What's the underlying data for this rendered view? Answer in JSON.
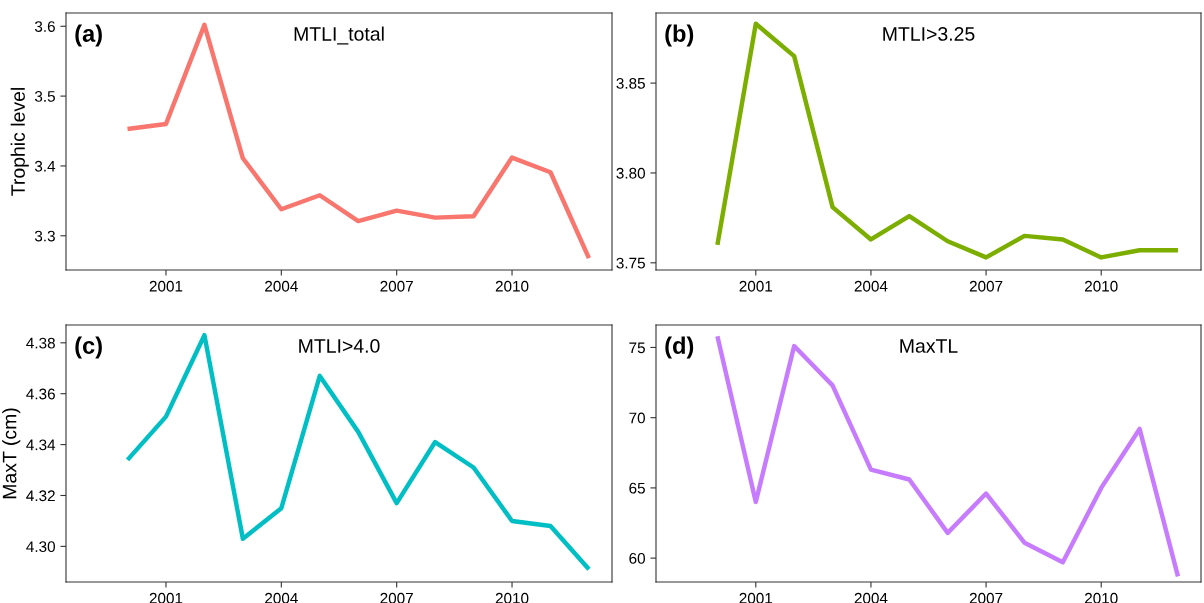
{
  "chart_data": [
    {
      "type": "line",
      "title": "MTLI_total",
      "ylabel": "Trophic level",
      "annotations": [
        "(a)"
      ],
      "x": [
        2000,
        2001,
        2002,
        2003,
        2004,
        2005,
        2006,
        2007,
        2008,
        2009,
        2010,
        2011,
        2012
      ],
      "series": [
        {
          "color": "#f8766d",
          "values": [
            3.453,
            3.46,
            3.602,
            3.411,
            3.338,
            3.358,
            3.321,
            3.336,
            3.326,
            3.328,
            3.412,
            3.391,
            3.268
          ]
        }
      ],
      "xlim": [
        1998.4,
        2012.6
      ],
      "xticks": [
        2001,
        2004,
        2007,
        2010
      ],
      "ylim": [
        3.251,
        3.619
      ],
      "yticks": [
        {
          "value": 3.3,
          "label": "3.3"
        },
        {
          "value": 3.4,
          "label": "3.4"
        },
        {
          "value": 3.5,
          "label": "3.5"
        },
        {
          "value": 3.6,
          "label": "3.6"
        }
      ],
      "grid": false,
      "legend": false
    },
    {
      "type": "line",
      "title": "MTLI>3.25",
      "annotations": [
        "(b)"
      ],
      "x": [
        2000,
        2001,
        2002,
        2003,
        2004,
        2005,
        2006,
        2007,
        2008,
        2009,
        2010,
        2011,
        2012
      ],
      "series": [
        {
          "color": "#7cae00",
          "values": [
            3.76,
            3.883,
            3.865,
            3.781,
            3.763,
            3.776,
            3.762,
            3.753,
            3.765,
            3.763,
            3.753,
            3.757,
            3.757
          ]
        }
      ],
      "xlim": [
        1998.4,
        2012.6
      ],
      "xticks": [
        2001,
        2004,
        2007,
        2010
      ],
      "ylim": [
        3.746,
        3.889
      ],
      "yticks": [
        {
          "value": 3.75,
          "label": "3.75"
        },
        {
          "value": 3.8,
          "label": "3.80"
        },
        {
          "value": 3.85,
          "label": "3.85"
        }
      ],
      "grid": false,
      "legend": false
    },
    {
      "type": "line",
      "title": "MTLI>4.0",
      "ylabel": "MaxT (cm)",
      "annotations": [
        "(c)"
      ],
      "x": [
        2000,
        2001,
        2002,
        2003,
        2004,
        2005,
        2006,
        2007,
        2008,
        2009,
        2010,
        2011,
        2012
      ],
      "series": [
        {
          "color": "#00bfc4",
          "values": [
            4.334,
            4.351,
            4.383,
            4.303,
            4.315,
            4.367,
            4.345,
            4.317,
            4.341,
            4.331,
            4.31,
            4.308,
            4.291
          ]
        }
      ],
      "xlim": [
        1998.4,
        2012.6
      ],
      "xticks": [
        2001,
        2004,
        2007,
        2010
      ],
      "ylim": [
        4.286,
        4.387
      ],
      "yticks": [
        {
          "value": 4.3,
          "label": "4.30"
        },
        {
          "value": 4.32,
          "label": "4.32"
        },
        {
          "value": 4.34,
          "label": "4.34"
        },
        {
          "value": 4.36,
          "label": "4.36"
        },
        {
          "value": 4.38,
          "label": "4.38"
        }
      ],
      "grid": false,
      "legend": false
    },
    {
      "type": "line",
      "title": "MaxTL",
      "annotations": [
        "(d)"
      ],
      "x": [
        2000,
        2001,
        2002,
        2003,
        2004,
        2005,
        2006,
        2007,
        2008,
        2009,
        2010,
        2011,
        2012
      ],
      "series": [
        {
          "color": "#c77cff",
          "values": [
            75.8,
            64.0,
            75.1,
            72.3,
            66.3,
            65.6,
            61.8,
            64.6,
            61.1,
            59.7,
            65.0,
            69.2,
            58.7
          ]
        }
      ],
      "xlim": [
        1998.4,
        2012.6
      ],
      "xticks": [
        2001,
        2004,
        2007,
        2010
      ],
      "ylim": [
        58.3,
        76.6
      ],
      "yticks": [
        60,
        65,
        70,
        75
      ],
      "grid": false,
      "legend": false
    }
  ]
}
